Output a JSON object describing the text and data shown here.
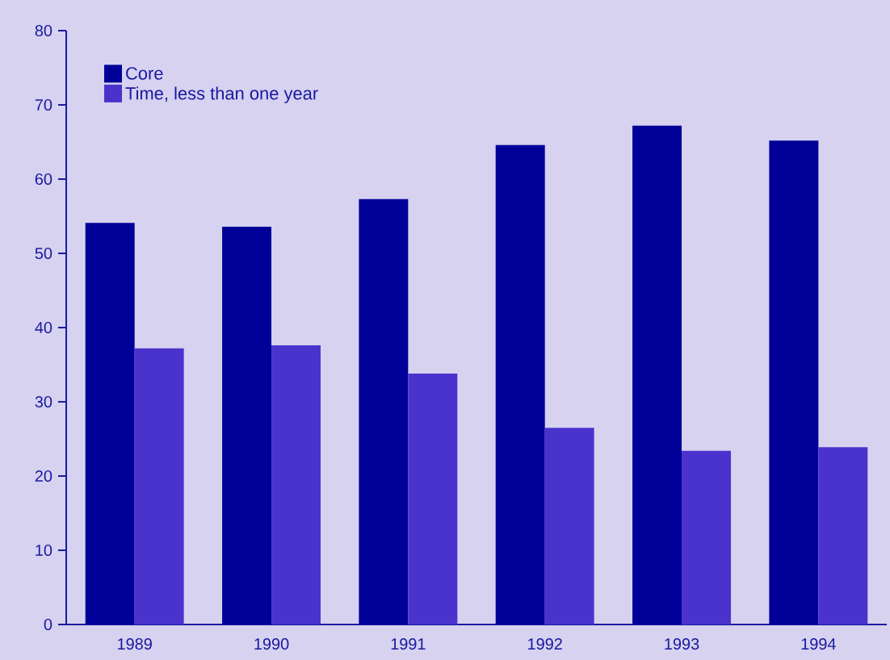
{
  "chart_data": {
    "type": "bar",
    "categories": [
      "1989",
      "1990",
      "1991",
      "1992",
      "1993",
      "1994"
    ],
    "series": [
      {
        "name": "Core",
        "color": "#000099",
        "values": [
          54.1,
          53.6,
          57.3,
          64.6,
          67.2,
          65.2
        ]
      },
      {
        "name": "Time, less than one year",
        "color": "#4a33cc",
        "values": [
          37.2,
          37.6,
          33.8,
          26.5,
          23.4,
          23.9
        ]
      }
    ],
    "ylim": [
      0,
      80
    ],
    "yticks": [
      0,
      10,
      20,
      30,
      40,
      50,
      60,
      70,
      80
    ],
    "grid": false,
    "legend": "top left"
  }
}
